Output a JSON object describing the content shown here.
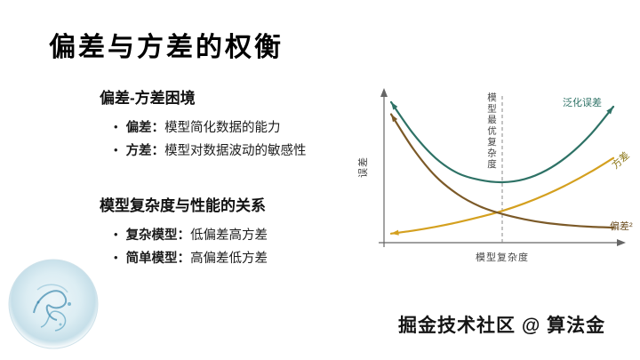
{
  "slide": {
    "title": "偏差与方差的权衡",
    "watermark": "掘金技术社区 @ 算法金",
    "sections": [
      {
        "heading": "偏差-方差困境",
        "bullets": [
          {
            "term": "偏差：",
            "text": "模型简化数据的能力"
          },
          {
            "term": "方差：",
            "text": "模型对数据波动的敏感性"
          }
        ]
      },
      {
        "heading": "模型复杂度与性能的关系",
        "bullets": [
          {
            "term": "复杂模型：",
            "text": "低偏差高方差"
          },
          {
            "term": "简单模型：",
            "text": "高偏差低方差"
          }
        ]
      }
    ]
  },
  "chart_data": {
    "type": "line",
    "title": "",
    "xlabel": "模型复杂度",
    "ylabel": "误差",
    "optimal_line_label": "模型最优复杂度",
    "optimal_x": 5,
    "xlim": [
      0,
      10
    ],
    "ylim": [
      0,
      10
    ],
    "grid": false,
    "legend_position": "line-end-labels",
    "x": [
      0,
      1,
      2,
      3,
      4,
      5,
      6,
      7,
      8,
      9,
      10
    ],
    "series": [
      {
        "name": "泛化误差",
        "color": "#2e7266",
        "arrow_start": true,
        "arrow_end": true,
        "values": [
          9.3,
          7.2,
          5.6,
          4.6,
          4.15,
          4.0,
          4.2,
          4.8,
          5.8,
          7.2,
          9.0
        ]
      },
      {
        "name": "方差",
        "color": "#d4a01f",
        "arrow_start": true,
        "arrow_end": false,
        "values": [
          0.6,
          0.8,
          1.05,
          1.35,
          1.7,
          2.1,
          2.6,
          3.2,
          3.9,
          4.7,
          5.6
        ]
      },
      {
        "name": "偏差²",
        "color": "#7c5a28",
        "arrow_start": true,
        "arrow_end": false,
        "values": [
          8.5,
          6.2,
          4.4,
          3.2,
          2.4,
          1.9,
          1.55,
          1.3,
          1.15,
          1.05,
          1.0
        ]
      }
    ]
  }
}
